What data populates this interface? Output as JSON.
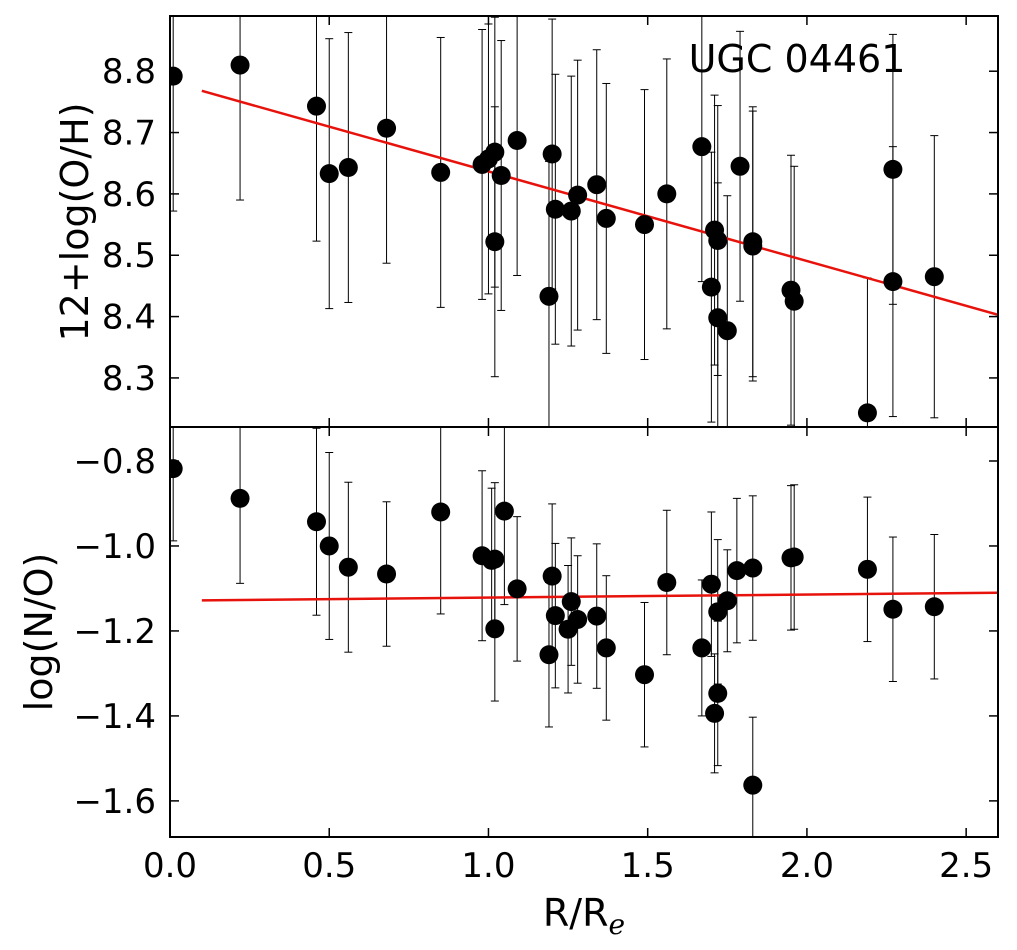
{
  "chart_data": [
    {
      "type": "scatter",
      "title": "UGC 04461",
      "xlabel": "",
      "ylabel": "12+log(O/H)",
      "xlim": [
        0.0,
        2.6
      ],
      "ylim": [
        8.22,
        8.89
      ],
      "xticks": [
        0.0,
        0.5,
        1.0,
        1.5,
        2.0,
        2.5
      ],
      "yticks": [
        8.3,
        8.4,
        8.5,
        8.6,
        8.7,
        8.8
      ],
      "ytick_labels": [
        "8.3",
        "8.4",
        "8.5",
        "8.6",
        "8.7",
        "8.8"
      ],
      "fit_line": {
        "x": [
          0.1,
          2.6
        ],
        "y": [
          8.768,
          8.403
        ],
        "color": "#e8120c"
      },
      "points": [
        {
          "x": 0.01,
          "y": 8.792,
          "err": 0.22
        },
        {
          "x": 0.22,
          "y": 8.81,
          "err": 0.22
        },
        {
          "x": 0.46,
          "y": 8.743,
          "err": 0.22
        },
        {
          "x": 0.5,
          "y": 8.633,
          "err": 0.22
        },
        {
          "x": 0.56,
          "y": 8.643,
          "err": 0.22
        },
        {
          "x": 0.68,
          "y": 8.707,
          "err": 0.22
        },
        {
          "x": 0.85,
          "y": 8.635,
          "err": 0.22
        },
        {
          "x": 0.98,
          "y": 8.648,
          "err": 0.22
        },
        {
          "x": 1.0,
          "y": 8.657,
          "err": 0.22
        },
        {
          "x": 1.02,
          "y": 8.668,
          "err": 0.22
        },
        {
          "x": 1.02,
          "y": 8.522,
          "err": 0.22
        },
        {
          "x": 1.04,
          "y": 8.63,
          "err": 0.22
        },
        {
          "x": 1.09,
          "y": 8.687,
          "err": 0.22
        },
        {
          "x": 1.19,
          "y": 8.433,
          "err": 0.22
        },
        {
          "x": 1.2,
          "y": 8.665,
          "err": 0.22
        },
        {
          "x": 1.21,
          "y": 8.575,
          "err": 0.22
        },
        {
          "x": 1.26,
          "y": 8.572,
          "err": 0.22
        },
        {
          "x": 1.28,
          "y": 8.598,
          "err": 0.22
        },
        {
          "x": 1.34,
          "y": 8.615,
          "err": 0.22
        },
        {
          "x": 1.37,
          "y": 8.56,
          "err": 0.22
        },
        {
          "x": 1.49,
          "y": 8.55,
          "err": 0.22
        },
        {
          "x": 1.56,
          "y": 8.6,
          "err": 0.22
        },
        {
          "x": 1.67,
          "y": 8.677,
          "err": 0.22
        },
        {
          "x": 1.7,
          "y": 8.448,
          "err": 0.22
        },
        {
          "x": 1.71,
          "y": 8.541,
          "err": 0.22
        },
        {
          "x": 1.72,
          "y": 8.524,
          "err": 0.22
        },
        {
          "x": 1.72,
          "y": 8.398,
          "err": 0.22
        },
        {
          "x": 1.75,
          "y": 8.377,
          "err": 0.22
        },
        {
          "x": 1.79,
          "y": 8.645,
          "err": 0.22
        },
        {
          "x": 1.83,
          "y": 8.522,
          "err": 0.22
        },
        {
          "x": 1.83,
          "y": 8.515,
          "err": 0.22
        },
        {
          "x": 1.95,
          "y": 8.443,
          "err": 0.22
        },
        {
          "x": 1.96,
          "y": 8.425,
          "err": 0.22
        },
        {
          "x": 2.19,
          "y": 8.243,
          "err": 0.22
        },
        {
          "x": 2.27,
          "y": 8.64,
          "err": 0.22
        },
        {
          "x": 2.27,
          "y": 8.457,
          "err": 0.22
        },
        {
          "x": 2.4,
          "y": 8.465,
          "err": 0.23
        }
      ]
    },
    {
      "type": "scatter",
      "xlabel": "R/R",
      "xlabel_sub": "e",
      "ylabel": "log(N/O)",
      "xlim": [
        0.0,
        2.6
      ],
      "ylim": [
        -1.685,
        -0.72
      ],
      "xticks": [
        0.0,
        0.5,
        1.0,
        1.5,
        2.0,
        2.5
      ],
      "xtick_labels": [
        "0.0",
        "0.5",
        "1.0",
        "1.5",
        "2.0",
        "2.5"
      ],
      "yticks": [
        -1.6,
        -1.4,
        -1.2,
        -1.0,
        -0.8
      ],
      "ytick_labels": [
        "−1.6",
        "−1.4",
        "−1.2",
        "−1.0",
        "−0.8"
      ],
      "fit_line": {
        "x": [
          0.1,
          2.6
        ],
        "y": [
          -1.128,
          -1.11
        ],
        "color": "#e8120c"
      },
      "points": [
        {
          "x": 0.01,
          "y": -0.818,
          "err": 0.17
        },
        {
          "x": 0.22,
          "y": -0.888,
          "err": 0.2
        },
        {
          "x": 0.46,
          "y": -0.943,
          "err": 0.22
        },
        {
          "x": 0.5,
          "y": -1.0,
          "err": 0.22
        },
        {
          "x": 0.56,
          "y": -1.05,
          "err": 0.2
        },
        {
          "x": 0.68,
          "y": -1.066,
          "err": 0.17
        },
        {
          "x": 0.85,
          "y": -0.92,
          "err": 0.24
        },
        {
          "x": 0.98,
          "y": -1.023,
          "err": 0.2
        },
        {
          "x": 1.01,
          "y": -1.034,
          "err": 0.17
        },
        {
          "x": 1.02,
          "y": -1.031,
          "err": 0.18
        },
        {
          "x": 1.02,
          "y": -1.195,
          "err": 0.17
        },
        {
          "x": 1.05,
          "y": -0.918,
          "err": 0.22
        },
        {
          "x": 1.09,
          "y": -1.101,
          "err": 0.17
        },
        {
          "x": 1.19,
          "y": -1.256,
          "err": 0.17
        },
        {
          "x": 1.2,
          "y": -1.071,
          "err": 0.17
        },
        {
          "x": 1.21,
          "y": -1.164,
          "err": 0.17
        },
        {
          "x": 1.25,
          "y": -1.196,
          "err": 0.15
        },
        {
          "x": 1.26,
          "y": -1.131,
          "err": 0.15
        },
        {
          "x": 1.28,
          "y": -1.173,
          "err": 0.15
        },
        {
          "x": 1.34,
          "y": -1.165,
          "err": 0.17
        },
        {
          "x": 1.37,
          "y": -1.24,
          "err": 0.17
        },
        {
          "x": 1.49,
          "y": -1.303,
          "err": 0.17
        },
        {
          "x": 1.56,
          "y": -1.086,
          "err": 0.17
        },
        {
          "x": 1.67,
          "y": -1.24,
          "err": 0.16
        },
        {
          "x": 1.7,
          "y": -1.09,
          "err": 0.17
        },
        {
          "x": 1.71,
          "y": -1.394,
          "err": 0.14
        },
        {
          "x": 1.72,
          "y": -1.155,
          "err": 0.17
        },
        {
          "x": 1.72,
          "y": -1.347,
          "err": 0.17
        },
        {
          "x": 1.75,
          "y": -1.129,
          "err": 0.12
        },
        {
          "x": 1.78,
          "y": -1.058,
          "err": 0.17
        },
        {
          "x": 1.83,
          "y": -1.052,
          "err": 0.17
        },
        {
          "x": 1.83,
          "y": -1.563,
          "err": 0.16
        },
        {
          "x": 1.95,
          "y": -1.028,
          "err": 0.17
        },
        {
          "x": 1.96,
          "y": -1.026,
          "err": 0.17
        },
        {
          "x": 2.19,
          "y": -1.055,
          "err": 0.17
        },
        {
          "x": 2.27,
          "y": -1.149,
          "err": 0.17
        },
        {
          "x": 2.4,
          "y": -1.143,
          "err": 0.17
        }
      ]
    }
  ]
}
